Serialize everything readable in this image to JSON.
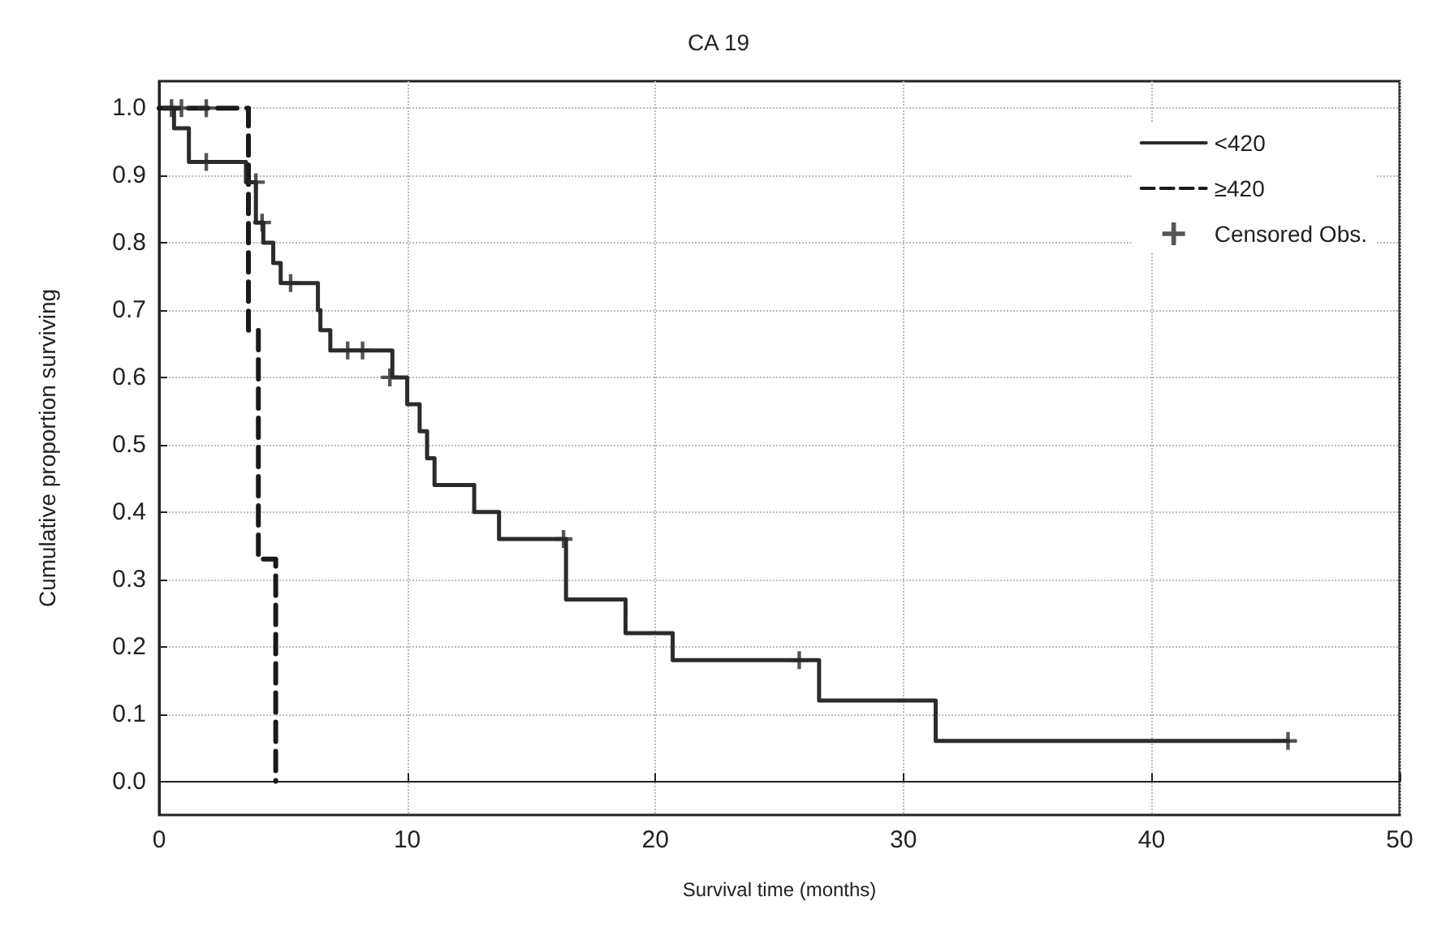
{
  "chart_data": {
    "type": "step",
    "title": "CA 19",
    "xlabel": "Survival time (months)",
    "ylabel": "Cumulative proportion surviving",
    "xlim": [
      0,
      50
    ],
    "xticks": [
      0,
      10,
      20,
      30,
      40,
      50
    ],
    "ylim": [
      -0.05,
      1.04
    ],
    "yticks": [
      {
        "value": 0,
        "label": "0.0"
      },
      {
        "value": 0.1,
        "label": "0.1"
      },
      {
        "value": 0.2,
        "label": "0.2"
      },
      {
        "value": 0.3,
        "label": "0.3"
      },
      {
        "value": 0.4,
        "label": "0.4"
      },
      {
        "value": 0.5,
        "label": "0.5"
      },
      {
        "value": 0.6,
        "label": "0.6"
      },
      {
        "value": 0.7,
        "label": "0.7"
      },
      {
        "value": 0.8,
        "label": "0.8"
      },
      {
        "value": 0.9,
        "label": "0.9"
      },
      {
        "value": 1,
        "label": "1.0"
      }
    ],
    "grid": true,
    "legend": "top right",
    "series": [
      {
        "name": "<420",
        "color": "#2b2b2b",
        "line_style": "solid",
        "marker": "none",
        "x": [
          0,
          0.6,
          1.2,
          3.5,
          3.9,
          4.2,
          4.6,
          4.9,
          6.4,
          6.5,
          6.9,
          9.4,
          10.0,
          10.5,
          10.8,
          11.1,
          12.7,
          13.7,
          16.4,
          18.8,
          20.7,
          26.6,
          31.3,
          45.5
        ],
        "values": [
          1,
          0.97,
          0.92,
          0.89,
          0.83,
          0.8,
          0.77,
          0.74,
          0.7,
          0.67,
          0.64,
          0.6,
          0.56,
          0.52,
          0.48,
          0.44,
          0.4,
          0.36,
          0.27,
          0.22,
          0.18,
          0.12,
          0.06,
          0.06
        ]
      },
      {
        "name": "≥420",
        "color": "#1a1a1a",
        "line_style": "dashed",
        "marker": "none",
        "x": [
          0,
          3.6,
          4.0,
          4.7
        ],
        "values": [
          1,
          0.67,
          0.33,
          0
        ]
      },
      {
        "name": "Censored Obs.",
        "type": "scatter",
        "color": "#2b2b2b",
        "marker": "cross",
        "x": [
          0.5,
          0.9,
          1.9,
          1.9,
          3.9,
          4.15,
          5.3,
          7.6,
          8.2,
          9.3,
          16.3,
          25.8,
          45.5
        ],
        "values": [
          1,
          1,
          1,
          0.92,
          0.89,
          0.83,
          0.74,
          0.64,
          0.64,
          0.6,
          0.36,
          0.18,
          0.06
        ]
      }
    ]
  }
}
